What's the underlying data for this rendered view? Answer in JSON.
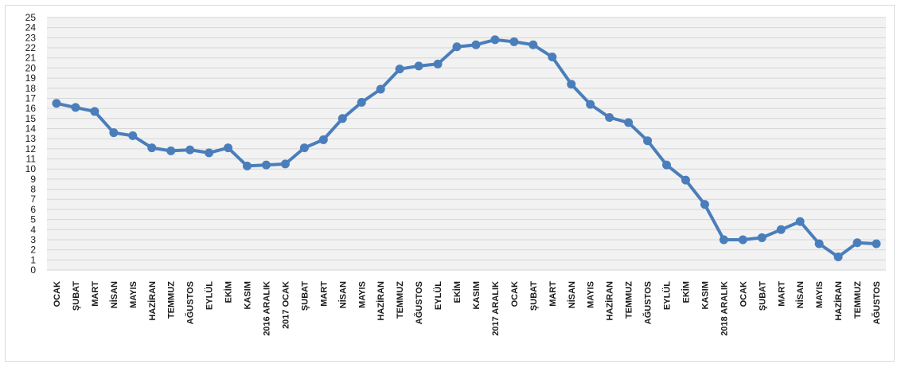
{
  "chart_data": {
    "type": "line",
    "title": "",
    "xlabel": "",
    "ylabel": "",
    "ylim": [
      0,
      25
    ],
    "grid": true,
    "legend": "none",
    "colors": {
      "line": "#4a7ebb",
      "grid": "#d6d6d6",
      "plot_bg": "#f2f2f2"
    },
    "categories": [
      "OCAK",
      "ŞUBAT",
      "MART",
      "NİSAN",
      "MAYIS",
      "HAZİRAN",
      "TEMMUZ",
      "AĞUSTOS",
      "EYLÜL",
      "EKİM",
      "KASIM",
      "2016 ARALIK",
      "2017 OCAK",
      "ŞUBAT",
      "MART",
      "NİSAN",
      "MAYIS",
      "HAZİRAN",
      "TEMMUZ",
      "AĞUSTOS",
      "EYLÜL",
      "EKİM",
      "KASIM",
      "2017 ARALIK",
      "OCAK",
      "ŞUBAT",
      "MART",
      "NİSAN",
      "MAYIS",
      "HAZİRAN",
      "TEMMUZ",
      "AĞUSTOS",
      "EYLÜL",
      "EKİM",
      "KASIM",
      "2018 ARALIK",
      "OCAK",
      "ŞUBAT",
      "MART",
      "NİSAN",
      "MAYIS",
      "HAZİRAN",
      "TEMMUZ",
      "AĞUSTOS"
    ],
    "yticks": [
      0,
      1,
      2,
      3,
      4,
      5,
      6,
      7,
      8,
      9,
      10,
      11,
      12,
      13,
      14,
      15,
      16,
      17,
      18,
      19,
      20,
      21,
      22,
      23,
      24,
      25
    ],
    "series": [
      {
        "values": [
          16.5,
          16.1,
          15.7,
          13.6,
          13.3,
          12.1,
          11.8,
          11.9,
          11.6,
          12.1,
          10.3,
          10.4,
          10.5,
          12.1,
          12.9,
          15.0,
          16.6,
          17.9,
          19.9,
          20.2,
          20.4,
          22.1,
          22.3,
          22.8,
          22.6,
          22.3,
          21.1,
          18.4,
          16.4,
          15.1,
          14.6,
          12.8,
          10.4,
          8.9,
          6.5,
          3.0,
          3.0,
          3.2,
          4.0,
          4.8,
          2.6,
          1.3,
          2.7,
          2.6
        ]
      }
    ]
  }
}
